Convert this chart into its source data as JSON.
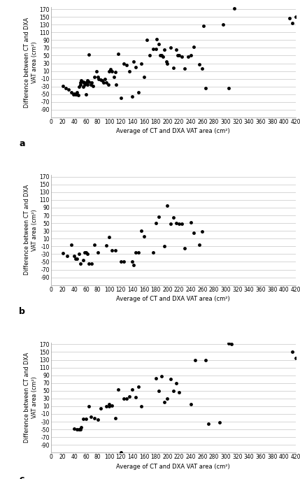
{
  "panel_a": {
    "x": [
      20,
      25,
      30,
      35,
      38,
      40,
      42,
      45,
      45,
      47,
      48,
      50,
      50,
      52,
      55,
      55,
      57,
      58,
      60,
      60,
      62,
      63,
      65,
      65,
      68,
      70,
      72,
      75,
      78,
      80,
      82,
      85,
      88,
      90,
      92,
      95,
      98,
      100,
      102,
      105,
      108,
      110,
      112,
      115,
      120,
      125,
      130,
      135,
      140,
      142,
      145,
      150,
      155,
      160,
      165,
      170,
      175,
      180,
      182,
      185,
      188,
      190,
      192,
      195,
      198,
      200,
      205,
      210,
      215,
      218,
      220,
      225,
      230,
      235,
      240,
      245,
      255,
      260,
      262,
      265,
      295,
      305,
      315,
      410,
      415,
      420
    ],
    "y": [
      -28,
      -35,
      -38,
      -45,
      -50,
      -48,
      -50,
      -45,
      -50,
      -52,
      -30,
      -25,
      -20,
      -15,
      -30,
      -18,
      -20,
      -25,
      -20,
      -50,
      -25,
      -15,
      52,
      -18,
      -25,
      -20,
      -28,
      -5,
      10,
      -5,
      -10,
      -12,
      -15,
      -20,
      -10,
      -20,
      -25,
      10,
      15,
      10,
      -5,
      8,
      -25,
      55,
      -60,
      30,
      25,
      10,
      -55,
      35,
      20,
      -45,
      30,
      -5,
      90,
      50,
      67,
      67,
      93,
      80,
      50,
      50,
      48,
      65,
      35,
      30,
      70,
      18,
      65,
      50,
      50,
      48,
      17,
      47,
      51,
      73,
      27,
      17,
      126,
      -35,
      130,
      -34,
      172,
      147,
      134,
      150
    ]
  },
  "panel_b": {
    "x": [
      20,
      28,
      35,
      40,
      42,
      45,
      48,
      50,
      55,
      58,
      60,
      62,
      65,
      70,
      75,
      80,
      95,
      100,
      105,
      110,
      120,
      125,
      140,
      142,
      145,
      150,
      155,
      160,
      175,
      180,
      185,
      195,
      200,
      205,
      210,
      215,
      220,
      225,
      230,
      240,
      245,
      255,
      260
    ],
    "y": [
      -28,
      -35,
      -5,
      -35,
      -42,
      -42,
      -30,
      -55,
      -45,
      -25,
      -25,
      -30,
      -55,
      -55,
      -5,
      -25,
      -7,
      14,
      -20,
      -20,
      -50,
      -50,
      -50,
      -58,
      -25,
      -25,
      31,
      15,
      -25,
      50,
      67,
      -10,
      95,
      48,
      65,
      50,
      48,
      48,
      -14,
      52,
      25,
      -5,
      29
    ]
  },
  "panel_c": {
    "x": [
      40,
      45,
      48,
      50,
      52,
      55,
      60,
      65,
      68,
      75,
      80,
      85,
      95,
      100,
      100,
      105,
      110,
      115,
      120,
      125,
      130,
      135,
      140,
      145,
      150,
      155,
      180,
      185,
      190,
      195,
      200,
      205,
      210,
      215,
      220,
      240,
      248,
      265,
      270,
      290,
      305,
      310,
      415,
      420
    ],
    "y": [
      -48,
      -50,
      -50,
      -50,
      -45,
      -22,
      -22,
      10,
      -18,
      -20,
      -25,
      5,
      10,
      10,
      15,
      12,
      -20,
      53,
      -110,
      30,
      30,
      35,
      53,
      33,
      60,
      10,
      82,
      50,
      87,
      20,
      30,
      80,
      50,
      70,
      46,
      15,
      130,
      130,
      -35,
      -32,
      172,
      170,
      150,
      135
    ]
  },
  "xlim": [
    0,
    420
  ],
  "ylim": [
    -110,
    175
  ],
  "xticks": [
    0,
    20,
    40,
    60,
    80,
    100,
    120,
    140,
    160,
    180,
    200,
    220,
    240,
    260,
    280,
    300,
    320,
    340,
    360,
    380,
    400,
    420
  ],
  "yticks": [
    -90,
    -70,
    -50,
    -30,
    -10,
    10,
    30,
    50,
    70,
    90,
    110,
    130,
    150,
    170
  ],
  "xlabel": "Average of CT and DXA VAT area (cm²)",
  "ylabel": "Difference between CT and DXA\nVAT area (cm²)",
  "marker_color": "#000000",
  "marker_size": 3.5,
  "bg_color": "#ffffff",
  "grid_color": "#d0d0d0",
  "grid_linewidth": 0.6,
  "panel_labels": [
    "a",
    "b",
    "c"
  ],
  "tick_fontsize": 5.5,
  "xlabel_fontsize": 6.0,
  "ylabel_fontsize": 5.8
}
